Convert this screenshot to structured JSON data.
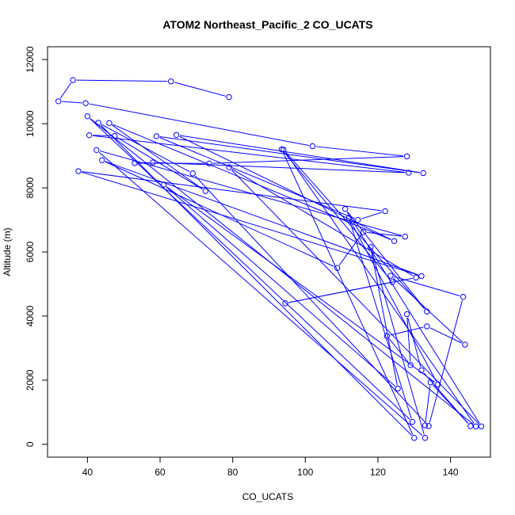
{
  "chart_data": {
    "type": "line",
    "title": "ATOM2 Northeast_Pacific_2 CO_UCATS",
    "xlabel": "CO_UCATS",
    "ylabel": "Altitude (m)",
    "xlim": [
      29,
      151
    ],
    "ylim": [
      -400,
      12400
    ],
    "x_ticks": [
      40,
      60,
      80,
      100,
      120,
      140
    ],
    "y_ticks": [
      0,
      2000,
      4000,
      6000,
      8000,
      10000,
      12000
    ],
    "grid": false,
    "color": "#0000ff",
    "marker": "open-circle",
    "series": [
      {
        "points": [
          [
            79,
            10830
          ],
          [
            63,
            11320
          ],
          [
            36,
            11360
          ],
          [
            32,
            10700
          ],
          [
            39.5,
            10640
          ],
          [
            102.0,
            9300
          ],
          [
            128,
            8980
          ],
          [
            73.5,
            8760
          ],
          [
            53,
            8770
          ],
          [
            58,
            8790
          ],
          [
            128.5,
            8470
          ],
          [
            40.5,
            9640
          ],
          [
            47.5,
            9620
          ],
          [
            72.5,
            7900
          ],
          [
            46,
            10020
          ],
          [
            124.5,
            6340
          ],
          [
            64.5,
            9650
          ],
          [
            132.5,
            8460
          ],
          [
            59,
            9610
          ],
          [
            114.5,
            7000
          ],
          [
            122,
            7270
          ],
          [
            37.5,
            8520
          ],
          [
            132,
            5250
          ],
          [
            44,
            8860
          ],
          [
            108.8,
            5500
          ],
          [
            116,
            6620
          ],
          [
            127.5,
            6480
          ],
          [
            42.5,
            9180
          ],
          [
            133.0,
            200
          ],
          [
            118,
            6150
          ],
          [
            125.5,
            1740
          ],
          [
            61,
            8100
          ],
          [
            136.5,
            1870
          ],
          [
            112,
            7060
          ],
          [
            129.5,
            700
          ],
          [
            40,
            10230
          ],
          [
            147,
            560
          ],
          [
            94,
            9190
          ],
          [
            133.5,
            4140
          ],
          [
            111,
            7340
          ],
          [
            148.5,
            560
          ],
          [
            79,
            8640
          ],
          [
            130.5,
            5200
          ],
          [
            94.5,
            4400
          ],
          [
            124,
            5060
          ],
          [
            93.5,
            9200
          ],
          [
            130,
            200
          ],
          [
            43,
            10030
          ],
          [
            69,
            8450
          ],
          [
            134,
            570
          ],
          [
            143.5,
            4600
          ],
          [
            123.5,
            5260
          ],
          [
            144,
            3110
          ],
          [
            133.5,
            3680
          ],
          [
            122.5,
            3380
          ],
          [
            129,
            2470
          ],
          [
            128,
            4060
          ],
          [
            132,
            2310
          ],
          [
            145.5,
            570
          ],
          [
            134.5,
            1930
          ],
          [
            133,
            590
          ]
        ]
      }
    ]
  }
}
